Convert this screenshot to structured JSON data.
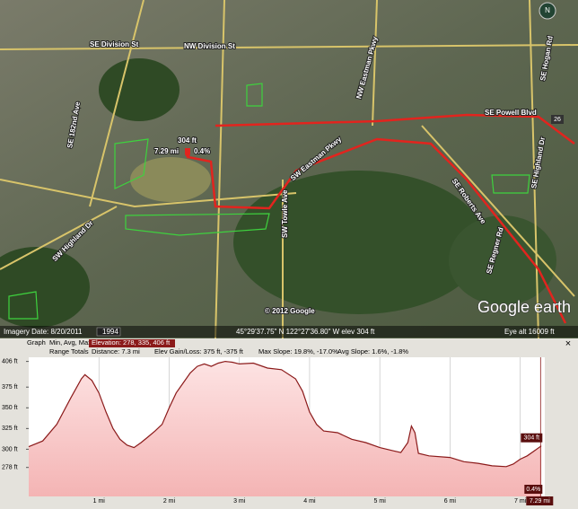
{
  "map": {
    "labels": {
      "division_se": "SE Division St",
      "division_nw": "NW Division St",
      "ave_182": "SE 182nd Ave",
      "eastman_nw": "NW Eastman Pkwy",
      "eastman_sw": "SW Eastman Pkwy",
      "towle": "SW Towle Ave",
      "powell": "SE Powell Blvd",
      "roberts": "SE Roberts Ave",
      "highland_se": "SE Highland Dr",
      "highland_sw": "SW Highland Dr",
      "regner": "SE Regner Rd",
      "hogan": "SE Hogan Rd"
    },
    "overlay": {
      "elevation": "304 ft",
      "distance": "7.29 mi",
      "slope": "0.4%"
    },
    "copyright": "© 2012 Google",
    "logo": "Google earth",
    "compass": "N",
    "shield": "26"
  },
  "status_bar": {
    "imagery_date": "Imagery Date: 8/20/2011",
    "year": "1994",
    "coordinates": "45°29'37.75\" N 122°27'36.80\" W elev  304 ft",
    "eye_alt": "Eye alt  16009 ft"
  },
  "profile_header": {
    "graph": "Graph",
    "stats": "Min, Avg, Max",
    "elevation": "Elevation: 278, 335, 406 ft",
    "range": "Range Totals",
    "distance": "Distance: 7.3 mi",
    "gain_loss": "Elev Gain/Loss: 375 ft, -375 ft",
    "max_slope": "Max Slope: 19.8%, -17.0%",
    "avg_slope": "Avg Slope: 1.6%, -1.8%",
    "close": "×"
  },
  "chart_data": {
    "type": "line",
    "x": [
      0,
      0.2,
      0.4,
      0.6,
      0.75,
      0.8,
      0.9,
      1.0,
      1.1,
      1.2,
      1.3,
      1.4,
      1.5,
      1.6,
      1.7,
      1.8,
      1.9,
      2.0,
      2.1,
      2.2,
      2.3,
      2.4,
      2.5,
      2.6,
      2.7,
      2.8,
      2.9,
      3.0,
      3.2,
      3.4,
      3.6,
      3.8,
      3.9,
      4.0,
      4.1,
      4.2,
      4.4,
      4.6,
      4.8,
      5.0,
      5.2,
      5.3,
      5.4,
      5.45,
      5.5,
      5.55,
      5.7,
      6.0,
      6.2,
      6.4,
      6.6,
      6.8,
      6.9,
      7.0,
      7.1,
      7.2,
      7.3
    ],
    "series": [
      {
        "color": "#8b1a1a",
        "values": [
          303,
          310,
          330,
          362,
          385,
          390,
          383,
          368,
          345,
          325,
          312,
          305,
          302,
          308,
          315,
          322,
          330,
          350,
          368,
          380,
          392,
          400,
          403,
          400,
          404,
          406,
          405,
          403,
          404,
          398,
          396,
          385,
          370,
          345,
          330,
          322,
          320,
          312,
          308,
          302,
          298,
          296,
          308,
          328,
          320,
          295,
          292,
          290,
          285,
          283,
          280,
          279,
          282,
          288,
          292,
          298,
          304
        ]
      }
    ],
    "xlim": [
      0,
      7.35
    ],
    "ylim": [
      243,
      411
    ],
    "xticks": [
      {
        "value": 1,
        "label": "1 mi"
      },
      {
        "value": 2,
        "label": "2 mi"
      },
      {
        "value": 3,
        "label": "3 mi"
      },
      {
        "value": 4,
        "label": "4 mi"
      },
      {
        "value": 5,
        "label": "5 mi"
      },
      {
        "value": 6,
        "label": "6 mi"
      },
      {
        "value": 7,
        "label": "7 mi"
      }
    ],
    "yticks": [
      {
        "value": 278,
        "label": "278 ft"
      },
      {
        "value": 300,
        "label": "300 ft"
      },
      {
        "value": 325,
        "label": "325 ft"
      },
      {
        "value": 350,
        "label": "350 ft"
      },
      {
        "value": 375,
        "label": "375 ft"
      },
      {
        "value": 406,
        "label": "406 ft"
      }
    ],
    "grid": true,
    "cursor": {
      "x": 7.29,
      "x_label": "7.29 mi",
      "value": 304,
      "value_label": "304 ft",
      "slope_label": "0.4%"
    }
  }
}
